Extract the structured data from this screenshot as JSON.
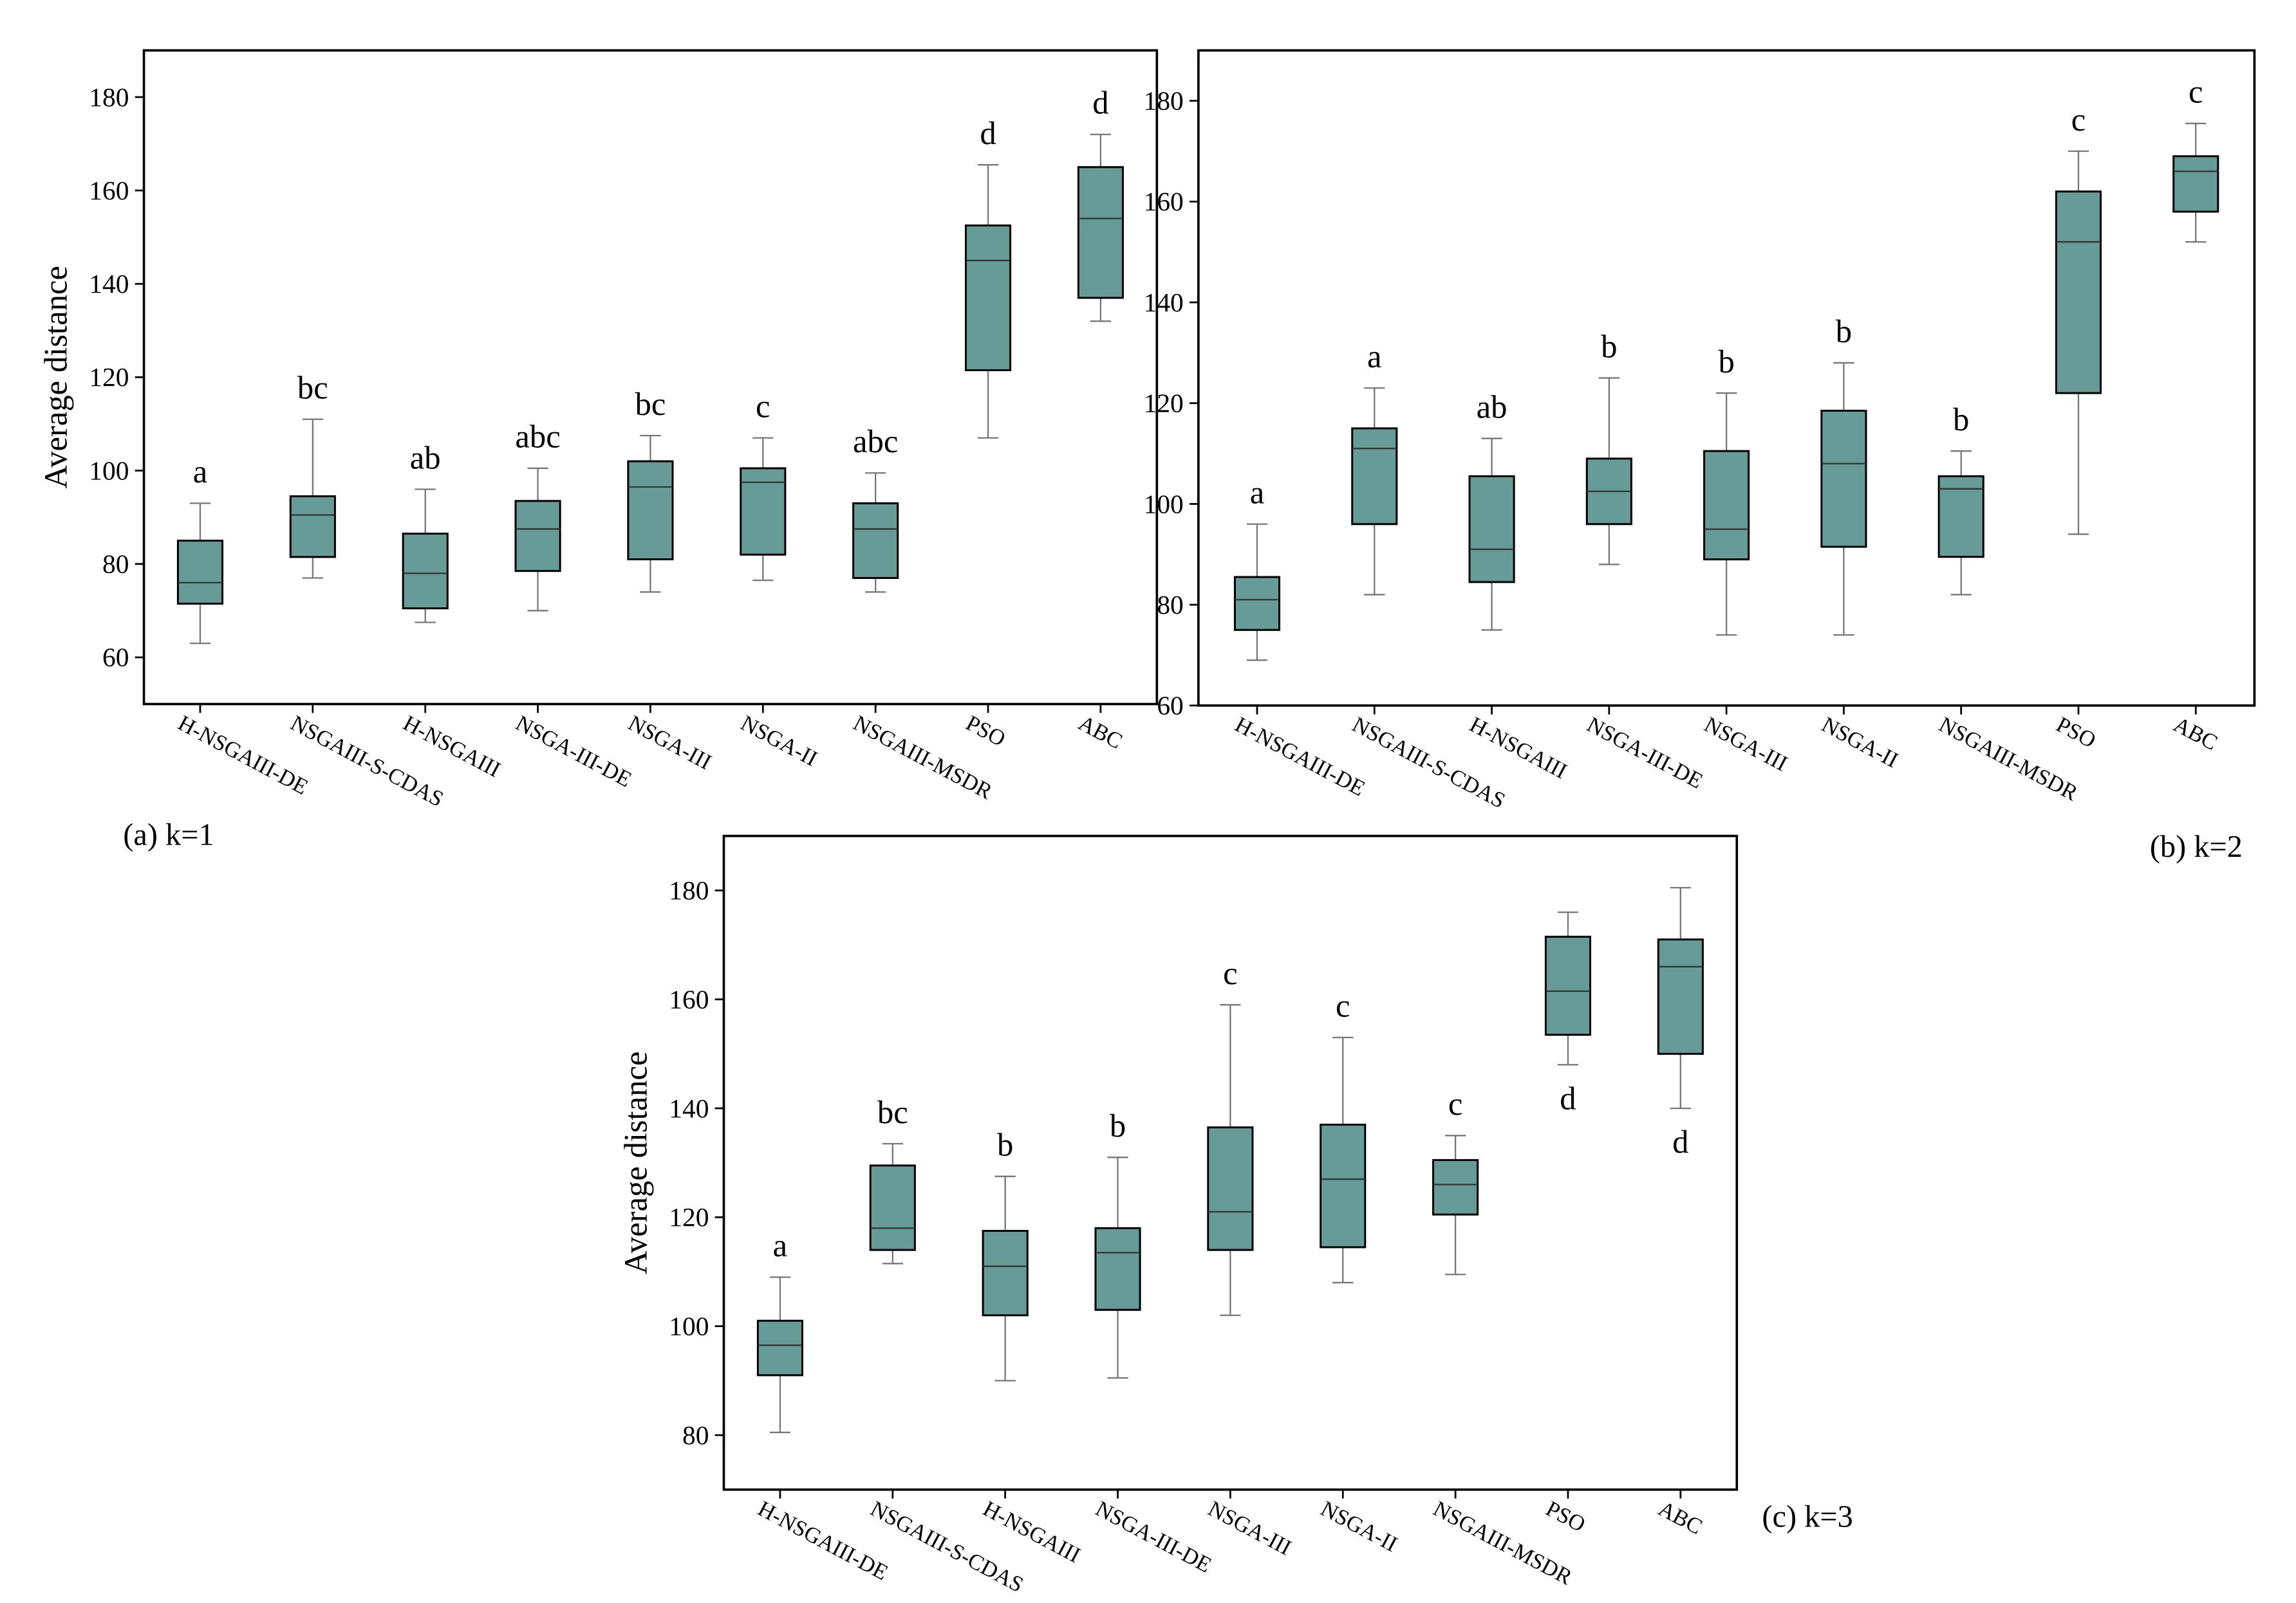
{
  "chart_data": [
    {
      "type": "box",
      "ylabel": "Average distance",
      "caption": "(a) k=1",
      "categories": [
        "H-NSGAIII-DE",
        "NSGAIII-S-CDAS",
        "H-NSGAIII",
        "NSGA-III-DE",
        "NSGA-III",
        "NSGA-II",
        "NSGAIII-MSDR",
        "PSO",
        "ABC"
      ],
      "min": [
        63,
        77,
        67.5,
        70,
        74,
        76.5,
        74,
        107,
        132
      ],
      "q1": [
        71.5,
        81.5,
        70.5,
        78.5,
        81,
        82,
        77,
        121.5,
        137
      ],
      "median": [
        76,
        90.5,
        78,
        87.5,
        96.5,
        97.5,
        87.5,
        145,
        154
      ],
      "q3": [
        85,
        94.5,
        86.5,
        93.5,
        102,
        100.5,
        93,
        152.5,
        165
      ],
      "max": [
        93,
        111,
        96,
        100.5,
        107.5,
        107,
        99.5,
        165.5,
        172
      ],
      "annotations": [
        "a",
        "bc",
        "ab",
        "abc",
        "bc",
        "c",
        "abc",
        "d",
        "d"
      ],
      "color": "#669b98",
      "ylim": [
        50,
        190
      ],
      "yticks": [
        60,
        80,
        100,
        120,
        140,
        160,
        180
      ]
    },
    {
      "type": "box",
      "caption": "(b) k=2",
      "categories": [
        "H-NSGAIII-DE",
        "NSGAIII-S-CDAS",
        "H-NSGAIII",
        "NSGA-III-DE",
        "NSGA-III",
        "NSGA-II",
        "NSGAIII-MSDR",
        "PSO",
        "ABC"
      ],
      "min": [
        69,
        82,
        75,
        88,
        74,
        74,
        82,
        94,
        152
      ],
      "q1": [
        75,
        96,
        84.5,
        96,
        89,
        91.5,
        89.5,
        122,
        158
      ],
      "median": [
        81,
        111,
        91,
        102.5,
        95,
        108,
        103,
        152,
        166
      ],
      "q3": [
        85.5,
        115,
        105.5,
        109,
        110.5,
        118.5,
        105.5,
        162,
        169
      ],
      "max": [
        96,
        123,
        113,
        125,
        122,
        128,
        110.5,
        170,
        175.5
      ],
      "annotations": [
        "a",
        "a",
        "ab",
        "b",
        "b",
        "b",
        "b",
        "c",
        "c"
      ],
      "color": "#669b98",
      "ylim": [
        60,
        190
      ],
      "yticks": [
        60,
        80,
        100,
        120,
        140,
        160,
        180
      ]
    },
    {
      "type": "box",
      "ylabel": "Average distance",
      "caption": "(c) k=3",
      "categories": [
        "H-NSGAIII-DE",
        "NSGAIII-S-CDAS",
        "H-NSGAIII",
        "NSGA-III-DE",
        "NSGA-III",
        "NSGA-II",
        "NSGAIII-MSDR",
        "PSO",
        "ABC"
      ],
      "min": [
        80.5,
        111.5,
        90,
        90.5,
        102,
        108,
        109.5,
        148,
        140
      ],
      "q1": [
        91,
        114,
        102,
        103,
        114,
        114.5,
        120.5,
        153.5,
        150
      ],
      "median": [
        96.5,
        118,
        111,
        113.5,
        121,
        127,
        126,
        161.5,
        166
      ],
      "q3": [
        101,
        129.5,
        117.5,
        118,
        136.5,
        137,
        130.5,
        171.5,
        171
      ],
      "max": [
        109,
        133.5,
        127.5,
        131,
        159,
        153,
        135,
        176,
        180.5
      ],
      "annotations": [
        "a",
        "bc",
        "b",
        "b",
        "c",
        "c",
        "c",
        "d",
        "d"
      ],
      "annotation_side": [
        "above",
        "above",
        "above",
        "above",
        "above",
        "above",
        "above",
        "below",
        "below"
      ],
      "color": "#669b98",
      "ylim": [
        70,
        190
      ],
      "yticks": [
        80,
        100,
        120,
        140,
        160,
        180
      ]
    }
  ]
}
